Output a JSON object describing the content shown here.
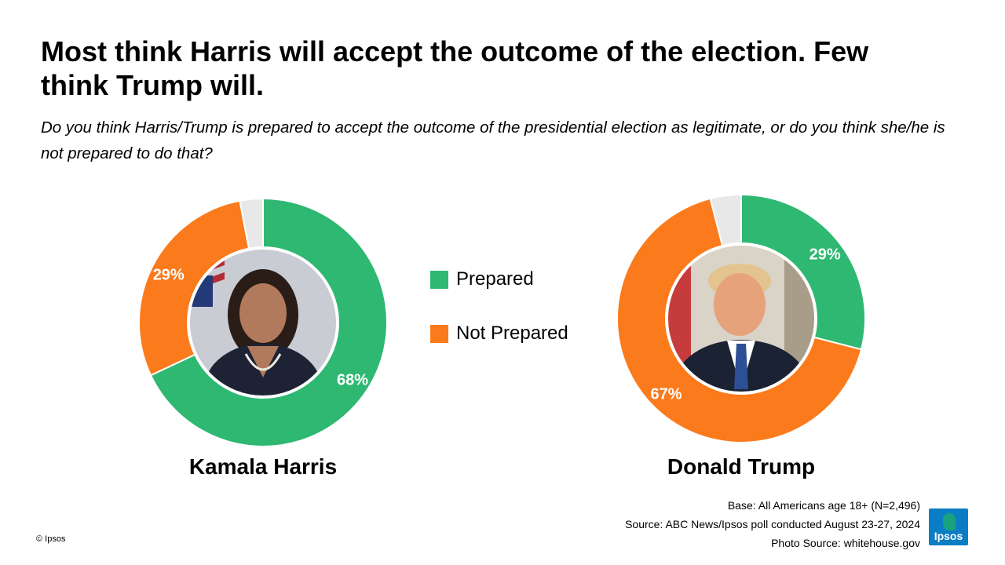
{
  "title": "Most think Harris will accept the outcome of the election. Few think Trump will.",
  "subtitle": "Do you think Harris/Trump  is prepared to accept the outcome of the presidential election as legitimate,  or do you think she/he is not prepared to do that?",
  "colors": {
    "prepared": "#2eb872",
    "not_prepared": "#fb7a1b",
    "no_answer": "#e8e8e8"
  },
  "legend": [
    {
      "label": "Prepared",
      "color": "#2eb872"
    },
    {
      "label": "Not Prepared",
      "color": "#fb7a1b"
    }
  ],
  "chart_data": [
    {
      "type": "pie",
      "title": "Kamala Harris",
      "photo": "kamala-harris-portrait",
      "slices": [
        {
          "name": "Prepared",
          "value": 68,
          "label": "68%"
        },
        {
          "name": "Not Prepared",
          "value": 29,
          "label": "29%"
        },
        {
          "name": "",
          "value": 3,
          "label": ""
        }
      ]
    },
    {
      "type": "pie",
      "title": "Donald Trump",
      "photo": "donald-trump-portrait",
      "slices": [
        {
          "name": "Prepared",
          "value": 29,
          "label": "29%"
        },
        {
          "name": "Not Prepared",
          "value": 67,
          "label": "67%"
        },
        {
          "name": "",
          "value": 4,
          "label": ""
        }
      ]
    }
  ],
  "footer": {
    "base": "Base: All Americans age 18+ (N=2,496)",
    "source": "Source: ABC News/Ipsos poll conducted August 23-27, 2024",
    "photo_source": "Photo Source: whitehouse.gov"
  },
  "copyright": "© Ipsos",
  "logo_text": "Ipsos"
}
